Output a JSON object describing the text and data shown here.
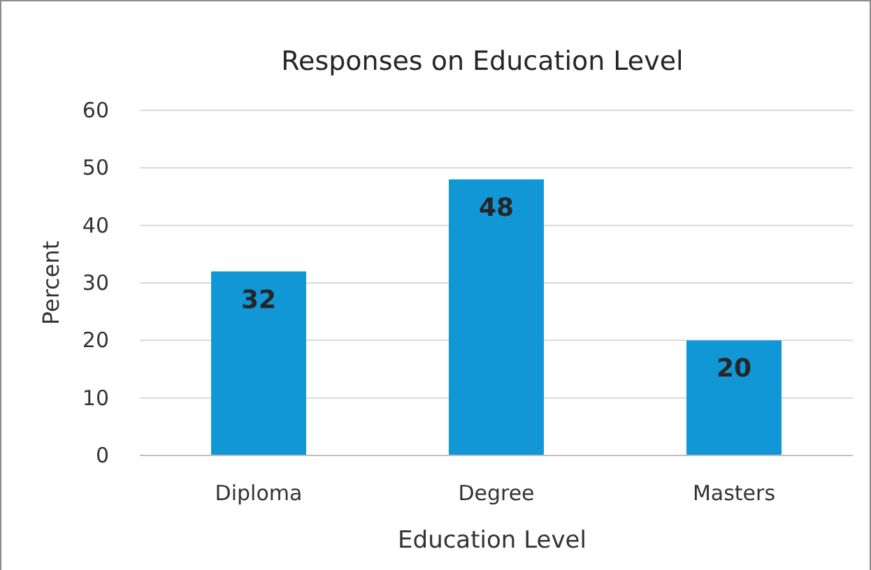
{
  "chart_data": {
    "type": "bar",
    "title": "Responses on Education Level",
    "xlabel": "Education Level",
    "ylabel": "Percent",
    "categories": [
      "Diploma",
      "Degree",
      "Masters"
    ],
    "values": [
      32,
      48,
      20
    ],
    "color": "#1197d6",
    "ylim": [
      0,
      60
    ],
    "yticks": [
      0,
      10,
      20,
      30,
      40,
      50,
      60
    ],
    "grid": "y",
    "data_labels": true
  }
}
